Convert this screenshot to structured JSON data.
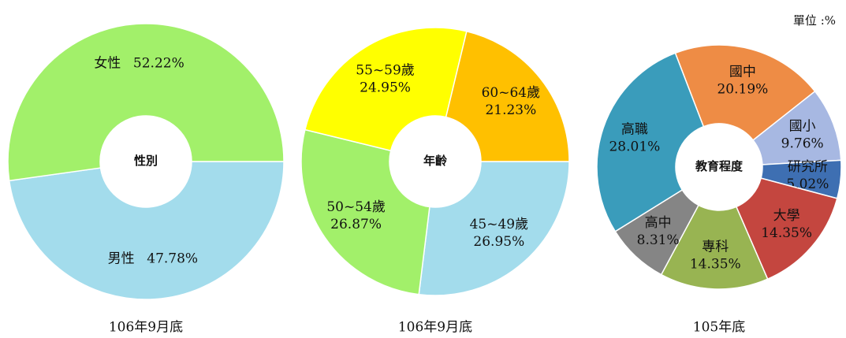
{
  "note": "單位 :%",
  "chart_data": [
    {
      "type": "donut",
      "center_label": "性別",
      "caption": "106年9月底",
      "start_angle": 90,
      "categories": [
        "男性",
        "女性"
      ],
      "values": [
        47.78,
        52.22
      ],
      "value_labels": [
        "47.78%",
        "52.22%"
      ],
      "colors": [
        "#a3dcec",
        "#a2f06a"
      ]
    },
    {
      "type": "donut",
      "center_label": "年齡",
      "caption": "106年9月底",
      "start_angle": 90,
      "categories": [
        "45~49歲",
        "50~54歲",
        "55~59歲",
        "60~64歲"
      ],
      "values": [
        26.95,
        26.87,
        24.95,
        21.23
      ],
      "value_labels": [
        "26.95%",
        "26.87%",
        "24.95%",
        "21.23%"
      ],
      "colors": [
        "#a3dcec",
        "#a2f06a",
        "#ffff00",
        "#ffc000"
      ]
    },
    {
      "type": "donut",
      "center_label": "教育程度",
      "caption": "105年底",
      "start_angle": -21,
      "categories": [
        "國中",
        "國小",
        "研究所",
        "大學",
        "專科",
        "高中",
        "高職"
      ],
      "values": [
        20.19,
        9.76,
        5.02,
        14.35,
        14.35,
        8.31,
        28.01
      ],
      "value_labels": [
        "20.19%",
        "9.76%",
        "5.02%",
        "14.35%",
        "14.35%",
        "8.31%",
        "28.01%"
      ],
      "colors": [
        "#ee8c45",
        "#a7b8e2",
        "#3e6fb2",
        "#c4463f",
        "#98b452",
        "#858585",
        "#3a9cbb"
      ]
    }
  ]
}
